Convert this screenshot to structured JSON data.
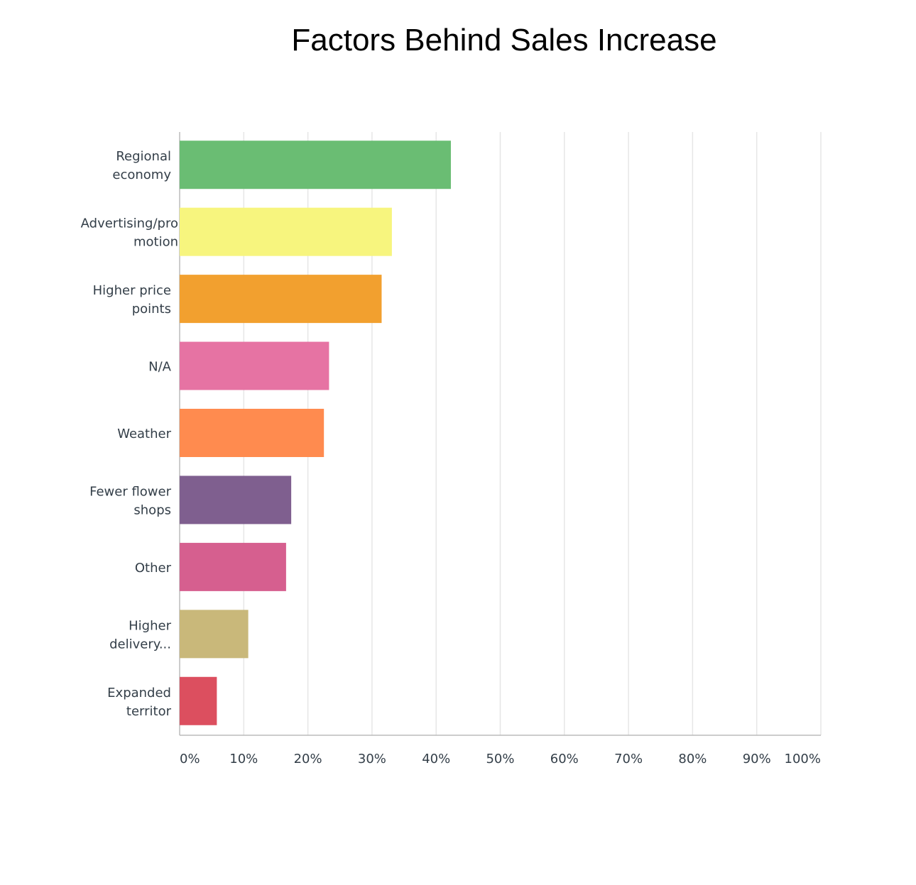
{
  "chart_data": {
    "type": "bar",
    "orientation": "horizontal",
    "title": "Factors Behind Sales Increase",
    "xlabel": "",
    "ylabel": "",
    "xlim": [
      0,
      100
    ],
    "grid": true,
    "categories": [
      [
        "Regional",
        "economy"
      ],
      [
        "Advertising/pro",
        "motion"
      ],
      [
        "Higher price",
        "points"
      ],
      [
        "N/A"
      ],
      [
        "Weather"
      ],
      [
        "Fewer flower",
        "shops"
      ],
      [
        "Other"
      ],
      [
        "Higher",
        "delivery..."
      ],
      [
        "Expanded",
        "territor"
      ]
    ],
    "values": [
      42.3,
      33.1,
      31.5,
      23.3,
      22.5,
      17.4,
      16.6,
      10.7,
      5.8
    ],
    "colors": [
      "#6abd73",
      "#f7f57e",
      "#f2a02f",
      "#e673a3",
      "#ff8b4f",
      "#7f5f8f",
      "#d65f8f",
      "#c9b87a",
      "#dc4f5f"
    ],
    "ticks": [
      "0%",
      "10%",
      "20%",
      "30%",
      "40%",
      "50%",
      "60%",
      "70%",
      "80%",
      "90%",
      "100%"
    ]
  }
}
